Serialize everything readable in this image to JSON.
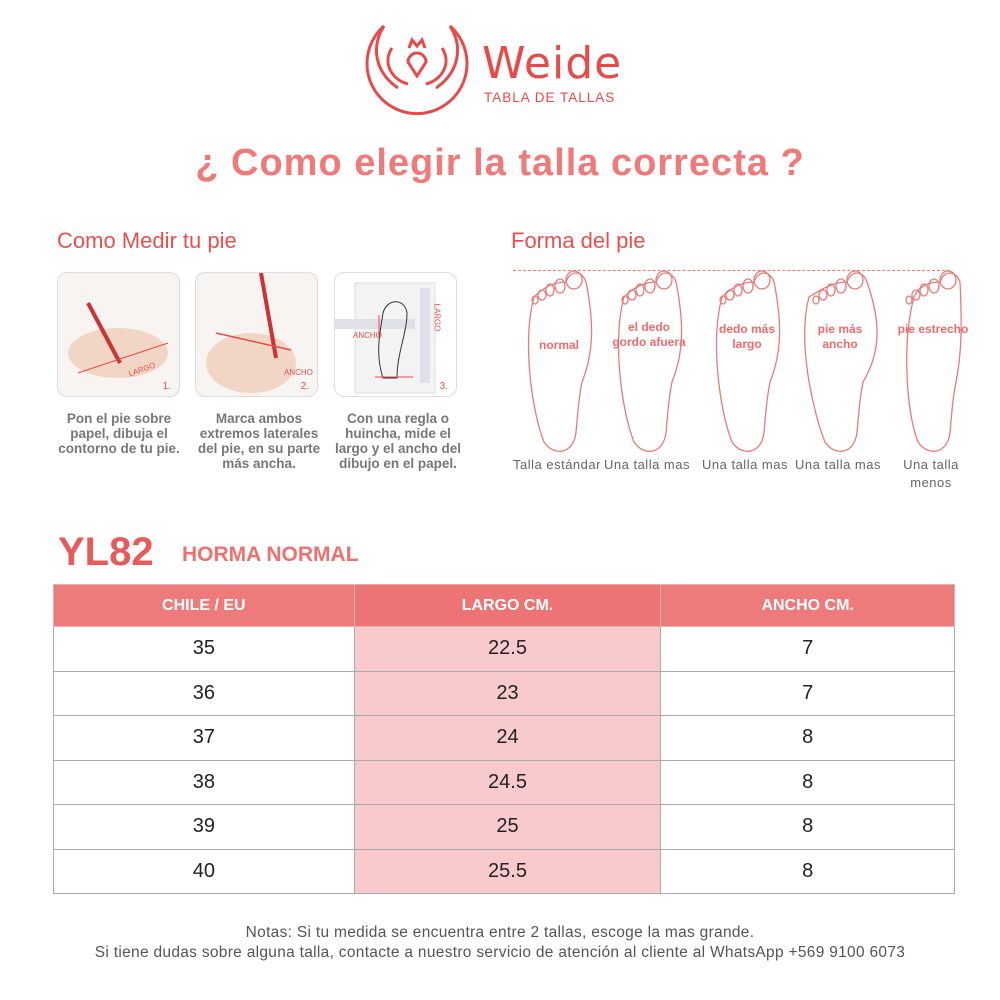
{
  "header": {
    "brand": "Weide",
    "subtitle": "TABLA DE TALLAS",
    "title": "¿ Como elegir la talla correcta ?",
    "brand_color": "#e84a4a"
  },
  "measure": {
    "heading": "Como Medir tu pie",
    "steps": [
      {
        "number": "1.",
        "photo_label": "LARGO",
        "text": "Pon el pie sobre papel, dibuja el contorno de tu pie."
      },
      {
        "number": "2.",
        "photo_label": "ANCHO",
        "text": "Marca ambos extremos laterales del pie, en su parte más ancha."
      },
      {
        "number": "3.",
        "photo_label": "ANCHO",
        "photo_label2": "LARGO",
        "text": "Con una regla o huincha, mide el largo y el ancho del dibujo en el papel."
      }
    ]
  },
  "shapes": {
    "heading": "Forma del pie",
    "items": [
      {
        "label": "normal",
        "caption": "Talla estándar"
      },
      {
        "label": "el dedo gordo afuera",
        "caption": "Una talla mas"
      },
      {
        "label": "dedo más largo",
        "caption": "Una talla mas"
      },
      {
        "label": "pie más ancho",
        "caption": "Una talla mas"
      },
      {
        "label": "pie estrecho",
        "caption": "Una talla menos"
      }
    ]
  },
  "model": {
    "code": "YL82",
    "fit": "HORMA NORMAL"
  },
  "table": {
    "headers": [
      "CHILE / EU",
      "LARGO CM.",
      "ANCHO CM."
    ],
    "rows": [
      [
        "35",
        "22.5",
        "7"
      ],
      [
        "36",
        "23",
        "7"
      ],
      [
        "37",
        "24",
        "8"
      ],
      [
        "38",
        "24.5",
        "8"
      ],
      [
        "39",
        "25",
        "8"
      ],
      [
        "40",
        "25.5",
        "8"
      ]
    ]
  },
  "notes": [
    "Notas: Si tu medida se encuentra entre 2 tallas, escoge la mas grande.",
    "Si tiene dudas sobre alguna talla, contacte a nuestro servicio de atención al cliente al WhatsApp +569 9100 6073"
  ]
}
